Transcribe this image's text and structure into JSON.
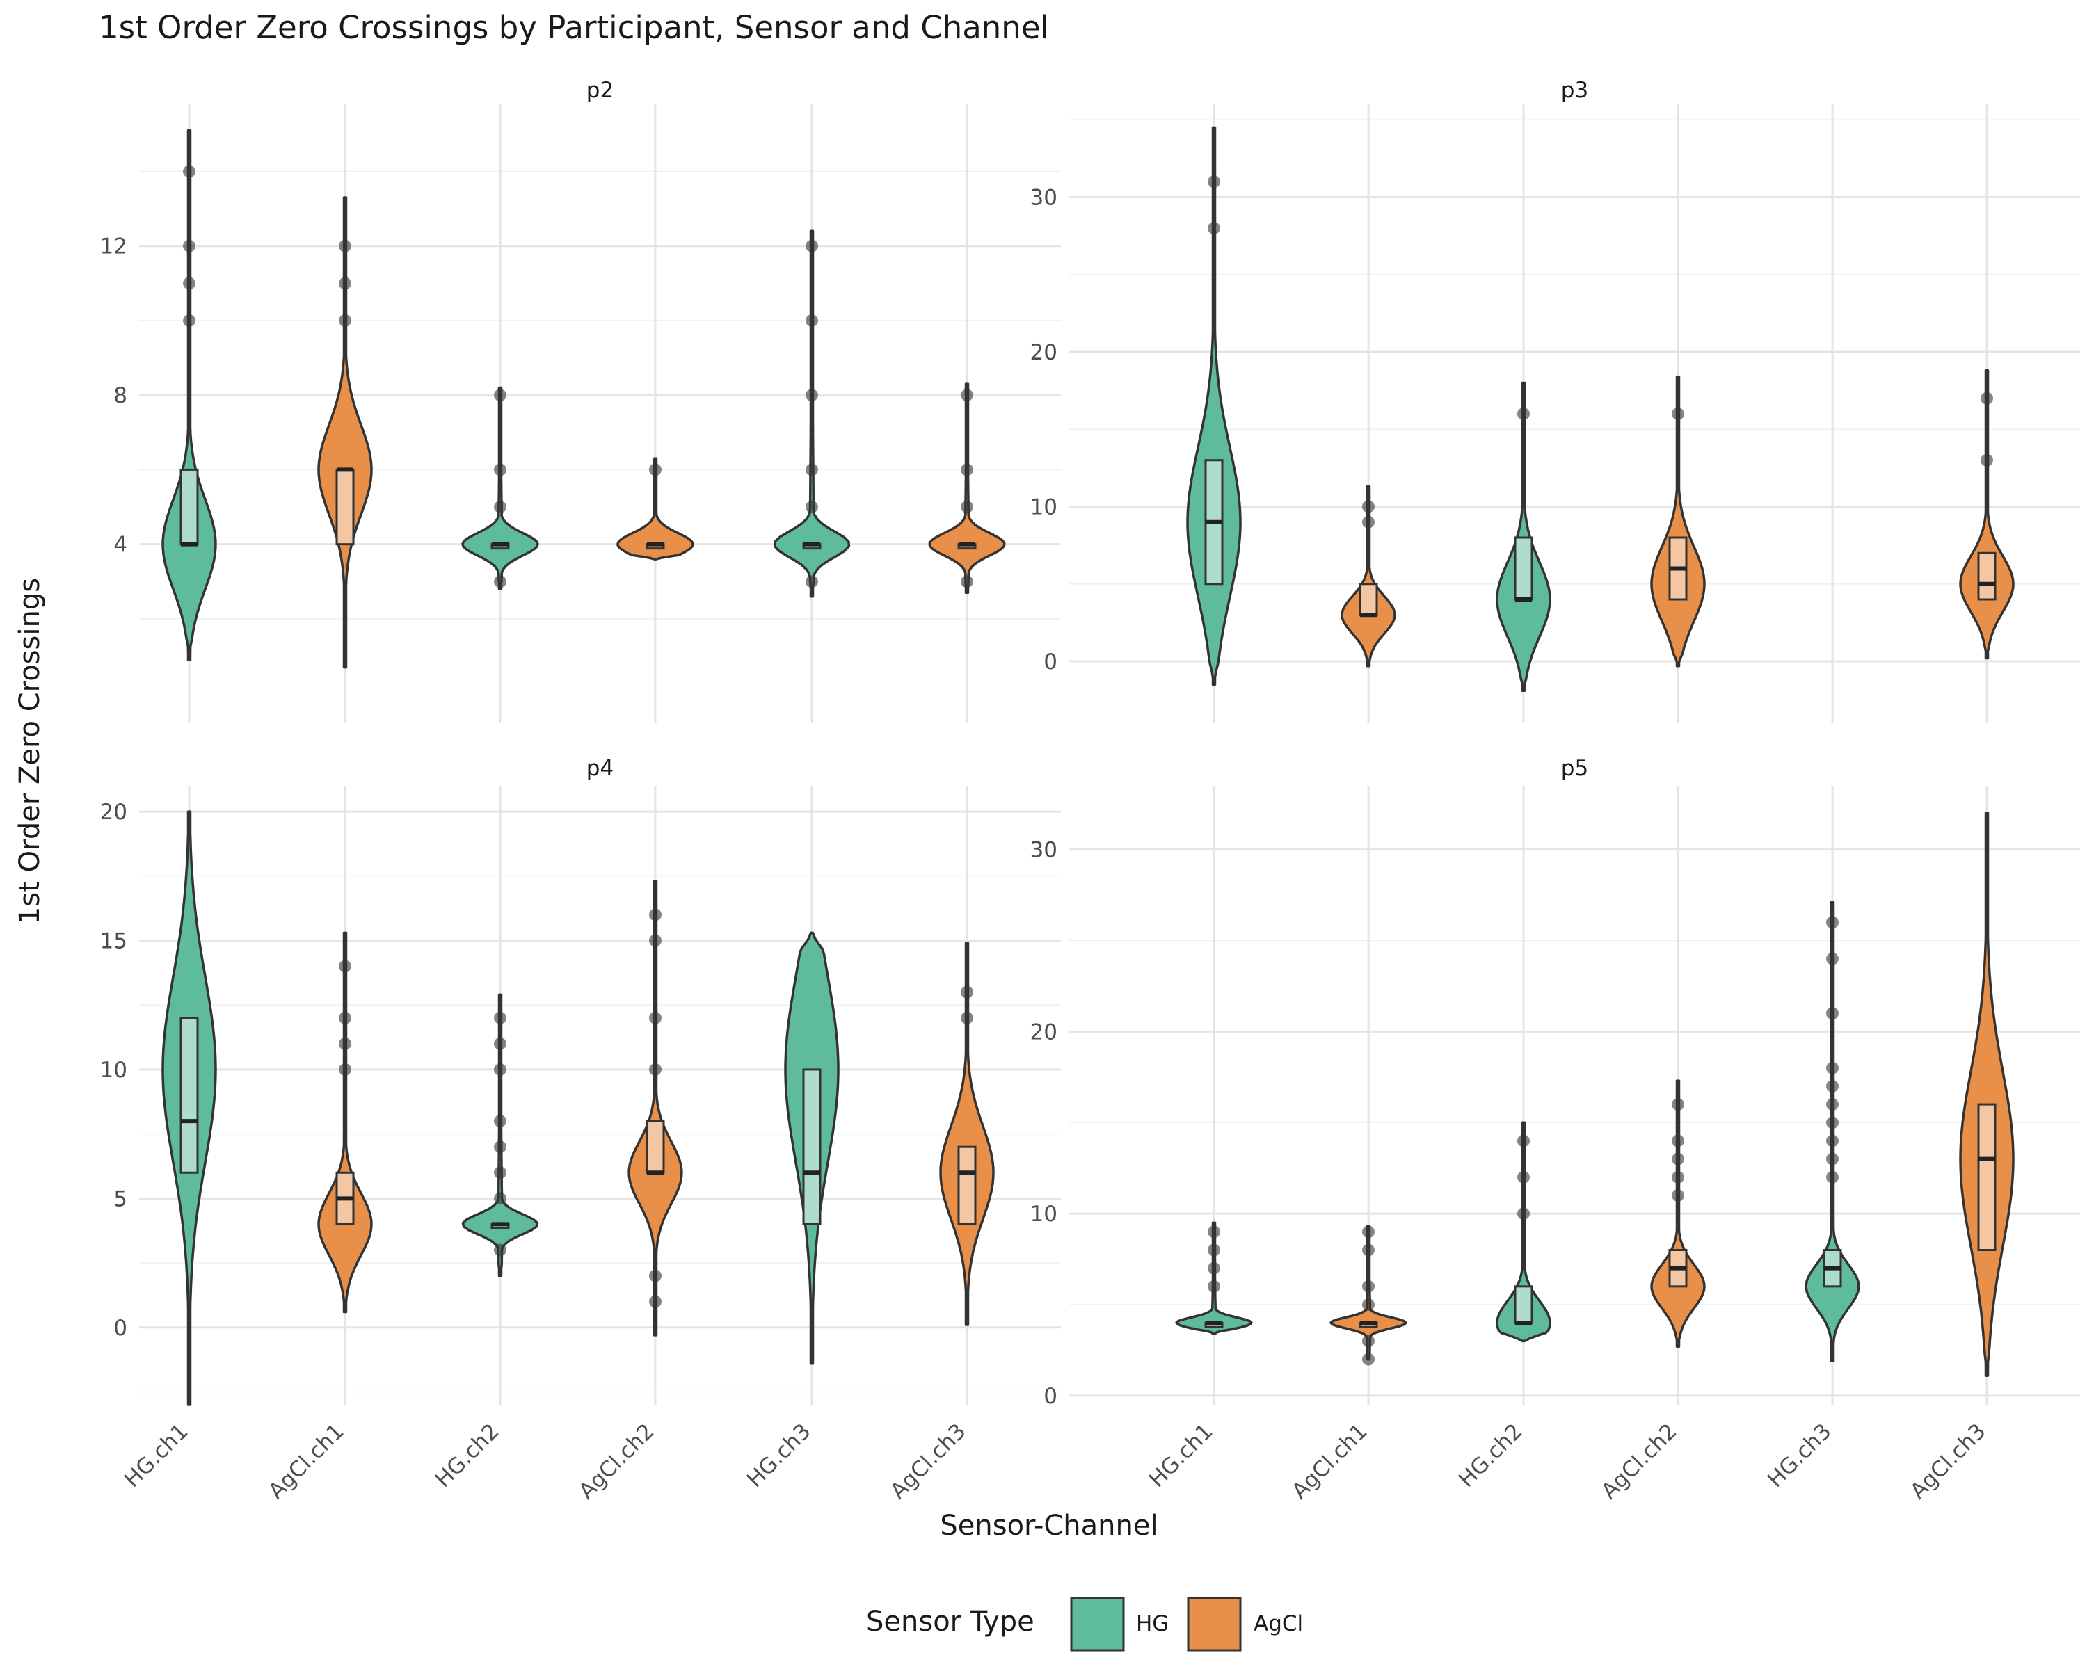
{
  "chart_data": {
    "type": "violin",
    "title": "1st Order Zero Crossings by Participant, Sensor and Channel",
    "xlabel": "Sensor-Channel",
    "ylabel": "1st Order Zero Crossings",
    "categories": [
      "HG.ch1",
      "AgCl.ch1",
      "HG.ch2",
      "AgCl.ch2",
      "HG.ch3",
      "AgCl.ch3"
    ],
    "category_sensor": [
      "HG",
      "AgCl",
      "HG",
      "AgCl",
      "HG",
      "AgCl"
    ],
    "legend": {
      "title": "Sensor Type",
      "position": "bottom",
      "entries": [
        {
          "label": "HG",
          "color": "#5fbb9e"
        },
        {
          "label": "AgCl",
          "color": "#e8904a"
        }
      ]
    },
    "grid": true,
    "facets": [
      {
        "label": "p2",
        "ylim": [
          -0.8,
          15.8
        ],
        "yticks": [
          4,
          8,
          12
        ],
        "series": [
          {
            "name": "HG.ch1",
            "box": {
              "q1": 4,
              "median": 4,
              "q3": 6
            },
            "violin_range": [
              0.9,
              15.1
            ],
            "mode": 4,
            "outliers": [
              10,
              11,
              12,
              14
            ]
          },
          {
            "name": "AgCl.ch1",
            "box": {
              "q1": 4,
              "median": 6,
              "q3": 6
            },
            "violin_range": [
              0.7,
              13.3
            ],
            "mode": 6,
            "outliers": [
              10,
              11,
              12
            ]
          },
          {
            "name": "HG.ch2",
            "box": {
              "q1": 4,
              "median": 4,
              "q3": 4
            },
            "violin_range": [
              2.8,
              8.2
            ],
            "mode": 4,
            "outliers": [
              3,
              5,
              6,
              8
            ]
          },
          {
            "name": "AgCl.ch2",
            "box": {
              "q1": 4,
              "median": 4,
              "q3": 4
            },
            "violin_range": [
              3.6,
              6.3
            ],
            "mode": 4,
            "outliers": [
              6
            ]
          },
          {
            "name": "HG.ch3",
            "box": {
              "q1": 4,
              "median": 4,
              "q3": 4
            },
            "violin_range": [
              2.6,
              12.4
            ],
            "mode": 4,
            "outliers": [
              3,
              5,
              6,
              8,
              10,
              12
            ]
          },
          {
            "name": "AgCl.ch3",
            "box": {
              "q1": 4,
              "median": 4,
              "q3": 4
            },
            "violin_range": [
              2.7,
              8.3
            ],
            "mode": 4,
            "outliers": [
              3,
              5,
              6,
              8
            ]
          }
        ]
      },
      {
        "label": "p3",
        "ylim": [
          -4,
          36
        ],
        "yticks": [
          0,
          10,
          20,
          30
        ],
        "series": [
          {
            "name": "HG.ch1",
            "box": {
              "q1": 5,
              "median": 9,
              "q3": 13
            },
            "violin_range": [
              -1.5,
              34.5
            ],
            "mode": 9,
            "outliers": [
              28,
              31
            ]
          },
          {
            "name": "AgCl.ch1",
            "box": {
              "q1": 3,
              "median": 3,
              "q3": 5
            },
            "violin_range": [
              -0.3,
              11.3
            ],
            "mode": 3,
            "outliers": [
              9,
              10
            ]
          },
          {
            "name": "HG.ch2",
            "box": {
              "q1": 4,
              "median": 4,
              "q3": 8
            },
            "violin_range": [
              -1.9,
              18
            ],
            "mode": 4,
            "outliers": [
              16
            ]
          },
          {
            "name": "AgCl.ch2",
            "box": {
              "q1": 4,
              "median": 6,
              "q3": 8
            },
            "violin_range": [
              -0.3,
              18.4
            ],
            "mode": 5,
            "outliers": [
              16
            ]
          },
          {
            "name": "HG.ch3",
            "box": null,
            "violin_range": null,
            "mode": null,
            "outliers": []
          },
          {
            "name": "AgCl.ch3",
            "box": {
              "q1": 4,
              "median": 5,
              "q3": 7
            },
            "violin_range": [
              0.2,
              18.8
            ],
            "mode": 5,
            "outliers": [
              13,
              17
            ]
          }
        ]
      },
      {
        "label": "p4",
        "ylim": [
          -3,
          21
        ],
        "yticks": [
          0,
          5,
          10,
          15,
          20
        ],
        "series": [
          {
            "name": "HG.ch1",
            "box": {
              "q1": 6,
              "median": 8,
              "q3": 12
            },
            "violin_range": [
              -3,
              20
            ],
            "mode": 10,
            "outliers": []
          },
          {
            "name": "AgCl.ch1",
            "box": {
              "q1": 4,
              "median": 5,
              "q3": 6
            },
            "violin_range": [
              0.6,
              15.3
            ],
            "mode": 4,
            "outliers": [
              10,
              11,
              12,
              14
            ]
          },
          {
            "name": "HG.ch2",
            "box": {
              "q1": 4,
              "median": 4,
              "q3": 4
            },
            "violin_range": [
              2,
              12.9
            ],
            "mode": 4,
            "outliers": [
              3,
              5,
              6,
              7,
              8,
              10,
              11,
              12
            ]
          },
          {
            "name": "AgCl.ch2",
            "box": {
              "q1": 6,
              "median": 6,
              "q3": 8
            },
            "violin_range": [
              -0.3,
              17.3
            ],
            "mode": 6,
            "outliers": [
              1,
              2,
              10,
              12,
              15,
              16
            ]
          },
          {
            "name": "HG.ch3",
            "box": {
              "q1": 4,
              "median": 6,
              "q3": 10
            },
            "violin_range": [
              -1.4,
              15.3
            ],
            "mode": 10,
            "outliers": []
          },
          {
            "name": "AgCl.ch3",
            "box": {
              "q1": 4,
              "median": 6,
              "q3": 7
            },
            "violin_range": [
              0.1,
              14.9
            ],
            "mode": 6,
            "outliers": [
              12,
              13
            ]
          }
        ]
      },
      {
        "label": "p5",
        "ylim": [
          -0.5,
          33.5
        ],
        "yticks": [
          0,
          10,
          20,
          30
        ],
        "series": [
          {
            "name": "HG.ch1",
            "box": {
              "q1": 4,
              "median": 4,
              "q3": 4
            },
            "violin_range": [
              3.4,
              9.5
            ],
            "mode": 4,
            "outliers": [
              6,
              7,
              8,
              9
            ]
          },
          {
            "name": "AgCl.ch1",
            "box": {
              "q1": 4,
              "median": 4,
              "q3": 4
            },
            "violin_range": [
              2,
              9.3
            ],
            "mode": 4,
            "outliers": [
              2,
              3,
              5,
              6,
              8,
              9
            ]
          },
          {
            "name": "HG.ch2",
            "box": {
              "q1": 4,
              "median": 4,
              "q3": 6
            },
            "violin_range": [
              3,
              15
            ],
            "mode": 4,
            "outliers": [
              10,
              12,
              14
            ]
          },
          {
            "name": "AgCl.ch2",
            "box": {
              "q1": 6,
              "median": 7,
              "q3": 8
            },
            "violin_range": [
              2.7,
              17.3
            ],
            "mode": 6,
            "outliers": [
              11,
              12,
              13,
              14,
              16
            ]
          },
          {
            "name": "HG.ch3",
            "box": {
              "q1": 6,
              "median": 7,
              "q3": 8
            },
            "violin_range": [
              1.9,
              27.1
            ],
            "mode": 6,
            "outliers": [
              12,
              13,
              14,
              15,
              16,
              17,
              18,
              21,
              24,
              26
            ]
          },
          {
            "name": "AgCl.ch3",
            "box": {
              "q1": 8,
              "median": 13,
              "q3": 16
            },
            "violin_range": [
              1.1,
              32
            ],
            "mode": 13,
            "outliers": []
          }
        ]
      }
    ]
  }
}
